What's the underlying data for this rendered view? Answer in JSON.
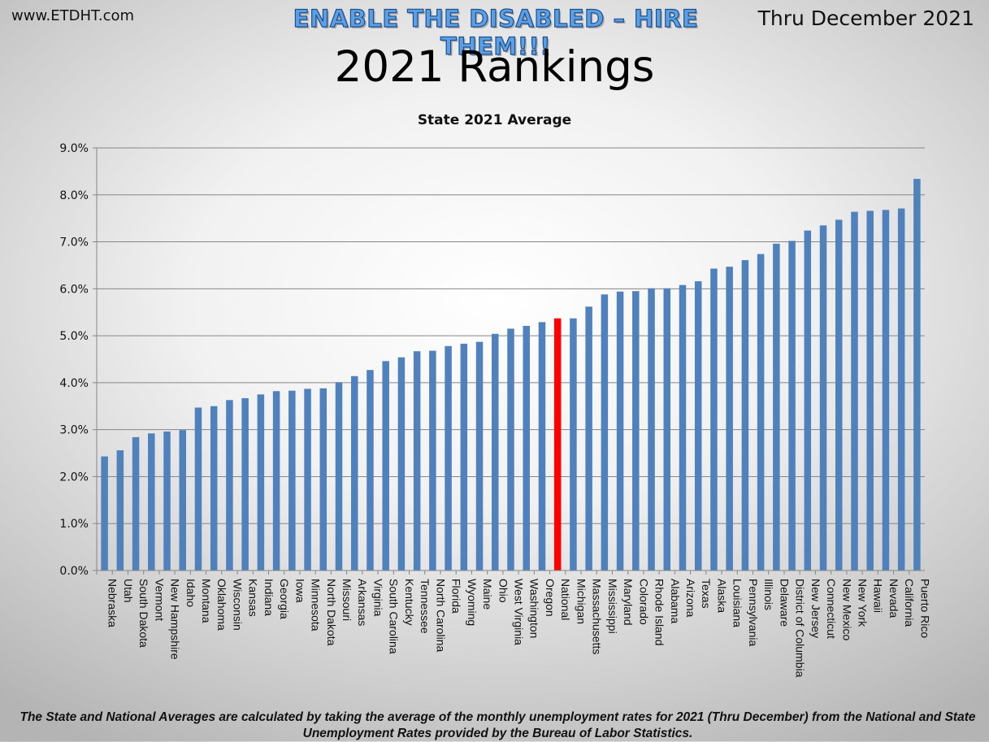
{
  "header": {
    "site": "www.ETDHT.com",
    "slogan": "ENABLE THE DISABLED – HIRE THEM!!!",
    "period": "Thru December 2021",
    "title": "2021 Rankings"
  },
  "colors": {
    "bar": "#4f81bd",
    "highlight": "#ff0000",
    "grid": "#868686"
  },
  "chart_data": {
    "type": "bar",
    "title": "State 2021 Average",
    "xlabel": "",
    "ylabel": "",
    "ylim": [
      0,
      9
    ],
    "yticks": [
      "0.0%",
      "1.0%",
      "2.0%",
      "3.0%",
      "4.0%",
      "5.0%",
      "6.0%",
      "7.0%",
      "8.0%",
      "9.0%"
    ],
    "grid": true,
    "highlight_category": "National",
    "categories": [
      "Nebraska",
      "Utah",
      "South Dakota",
      "Vermont",
      "New Hampshire",
      "Idaho",
      "Montana",
      "Oklahoma",
      "Wisconsin",
      "Kansas",
      "Indiana",
      "Georgia",
      "Iowa",
      "Minnesota",
      "North Dakota",
      "Missouri",
      "Arkansas",
      "Virginia",
      "South Carolina",
      "Kentucky",
      "Tennessee",
      "North Carolina",
      "Florida",
      "Wyoming",
      "Maine",
      "Ohio",
      "West Virginia",
      "Washington",
      "Oregon",
      "National",
      "Michigan",
      "Massachusetts",
      "Mississippi",
      "Maryland",
      "Colorado",
      "Rhode Island",
      "Alabama",
      "Arizona",
      "Texas",
      "Alaska",
      "Louisiana",
      "Pennsylvania",
      "Illinois",
      "Delaware",
      "District of Columbia",
      "New Jersey",
      "Connecticut",
      "New Mexico",
      "New York",
      "Hawaii",
      "Nevada",
      "California",
      "Puerto Rico"
    ],
    "values": [
      2.43,
      2.56,
      2.84,
      2.92,
      2.96,
      2.99,
      3.47,
      3.5,
      3.63,
      3.67,
      3.75,
      3.82,
      3.83,
      3.87,
      3.88,
      4.01,
      4.14,
      4.27,
      4.46,
      4.54,
      4.67,
      4.68,
      4.78,
      4.83,
      4.87,
      5.04,
      5.15,
      5.21,
      5.29,
      5.37,
      5.37,
      5.62,
      5.88,
      5.94,
      5.95,
      6.01,
      6.01,
      6.08,
      6.16,
      6.43,
      6.47,
      6.61,
      6.74,
      6.96,
      7.02,
      7.24,
      7.35,
      7.47,
      7.64,
      7.66,
      7.68,
      7.71,
      8.34
    ]
  },
  "footnote": "The State and National Averages are calculated by taking the average of the monthly unemployment rates for 2021 (Thru December) from the National and State Unemployment Rates provided by the Bureau of Labor Statistics."
}
